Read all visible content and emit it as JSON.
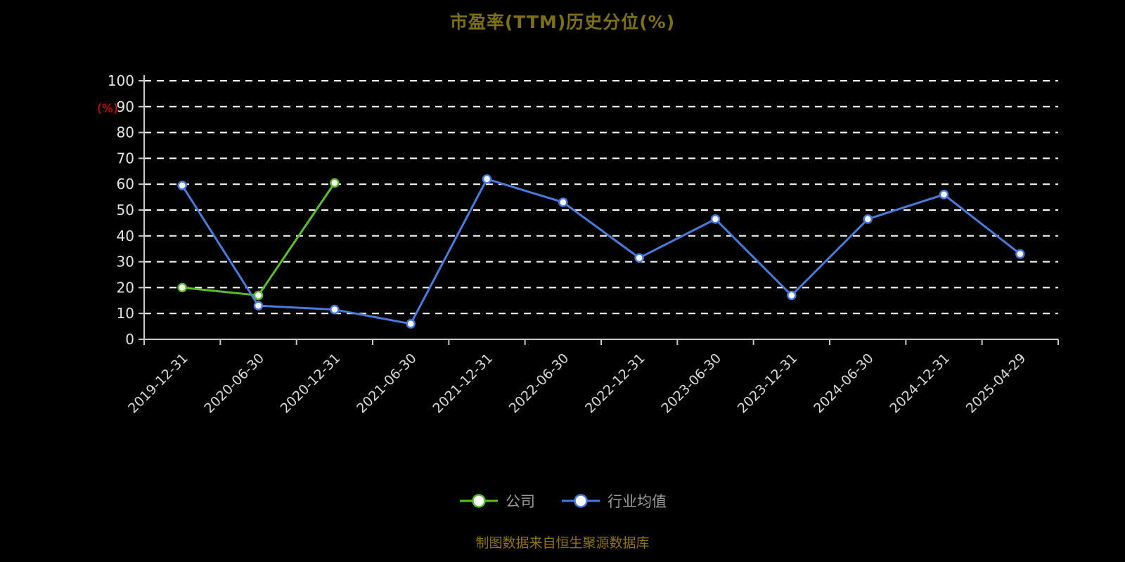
{
  "page": {
    "title": "市盈率(TTM)历史分位(%)",
    "footer": "制图数据来自恒生聚源数据库"
  },
  "chart_data": {
    "type": "line",
    "title": "市盈率(TTM)历史分位(%)",
    "ylabel": "(%)",
    "ylabel_color": "#ff0000",
    "categories": [
      "2019-12-31",
      "2020-06-30",
      "2020-12-31",
      "2021-06-30",
      "2021-12-31",
      "2022-06-30",
      "2022-12-31",
      "2023-06-30",
      "2023-12-31",
      "2024-06-30",
      "2024-12-31",
      "2025-04-29"
    ],
    "series": [
      {
        "id": "company",
        "name": "公司",
        "color": "#5abe2d",
        "values": [
          20,
          17,
          60.5,
          null,
          null,
          null,
          null,
          null,
          null,
          null,
          null,
          null
        ]
      },
      {
        "id": "industry-average",
        "name": "行业均值",
        "color": "#4a7bdc",
        "values": [
          59.5,
          13,
          11.5,
          6,
          62,
          53,
          31.5,
          46.5,
          17,
          46.5,
          56,
          33
        ]
      }
    ],
    "ylim": [
      0,
      100
    ],
    "ytick_step": 10,
    "grid": "horizontal-dashed-white",
    "legend_position": "bottom",
    "marker": "empty-circle"
  }
}
